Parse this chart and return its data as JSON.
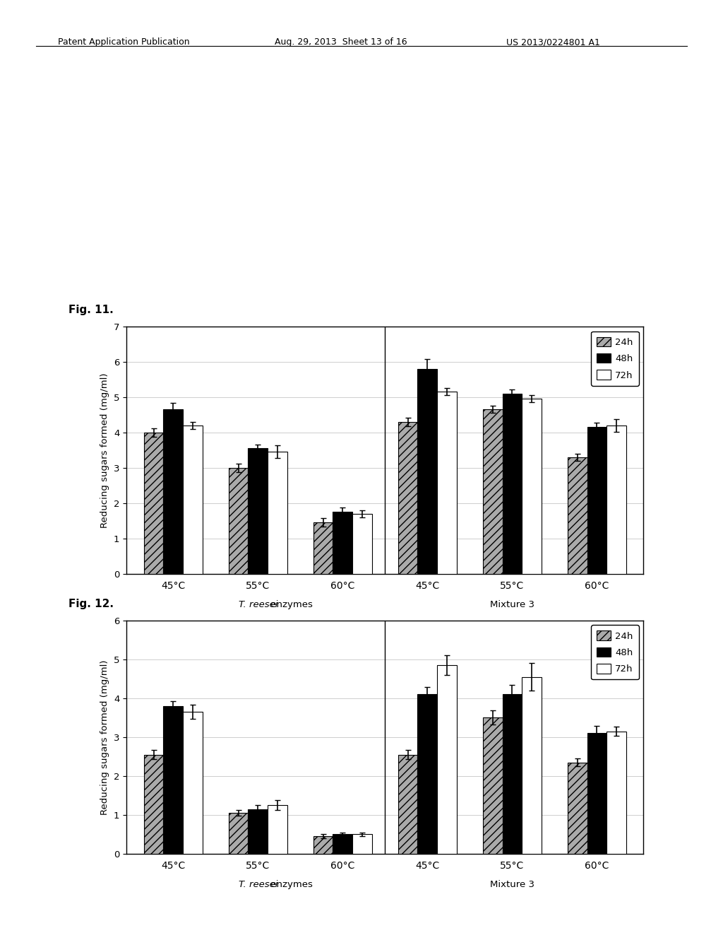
{
  "fig11": {
    "ylabel": "Reducing sugars formed (mg/ml)",
    "ylim": [
      0,
      7
    ],
    "yticks": [
      0,
      1,
      2,
      3,
      4,
      5,
      6,
      7
    ],
    "groups": [
      "45°C",
      "55°C",
      "60°C",
      "45°C",
      "55°C",
      "60°C"
    ],
    "series": [
      "24h",
      "48h",
      "72h"
    ],
    "values": {
      "24h": [
        4.0,
        3.0,
        1.45,
        4.3,
        4.65,
        3.3
      ],
      "48h": [
        4.65,
        3.55,
        1.75,
        5.8,
        5.1,
        4.15
      ],
      "72h": [
        4.2,
        3.45,
        1.7,
        5.15,
        4.95,
        4.2
      ]
    },
    "errors": {
      "24h": [
        0.12,
        0.12,
        0.12,
        0.12,
        0.1,
        0.1
      ],
      "48h": [
        0.18,
        0.1,
        0.12,
        0.28,
        0.12,
        0.12
      ],
      "72h": [
        0.1,
        0.18,
        0.1,
        0.1,
        0.1,
        0.18
      ]
    }
  },
  "fig12": {
    "ylabel": "Reducing sugars formed (mg/ml)",
    "ylim": [
      0,
      6
    ],
    "yticks": [
      0,
      1,
      2,
      3,
      4,
      5,
      6
    ],
    "groups": [
      "45°C",
      "55°C",
      "60°C",
      "45°C",
      "55°C",
      "60°C"
    ],
    "series": [
      "24h",
      "48h",
      "72h"
    ],
    "values": {
      "24h": [
        2.55,
        1.05,
        0.45,
        2.55,
        3.5,
        2.35
      ],
      "48h": [
        3.8,
        1.15,
        0.5,
        4.1,
        4.1,
        3.1
      ],
      "72h": [
        3.65,
        1.25,
        0.5,
        4.85,
        4.55,
        3.15
      ]
    },
    "errors": {
      "24h": [
        0.12,
        0.08,
        0.05,
        0.12,
        0.18,
        0.1
      ],
      "48h": [
        0.12,
        0.1,
        0.05,
        0.18,
        0.25,
        0.18
      ],
      "72h": [
        0.18,
        0.12,
        0.05,
        0.25,
        0.35,
        0.12
      ]
    }
  },
  "fig11_label": "Fig. 11.",
  "fig12_label": "Fig. 12.",
  "header_left": "Patent Application Publication",
  "header_mid": "Aug. 29, 2013  Sheet 13 of 16",
  "header_right": "US 2013/0224801 A1",
  "bar_colors": [
    "#aaaaaa",
    "#000000",
    "#ffffff"
  ],
  "bar_hatches": [
    "///",
    "",
    ""
  ],
  "bar_edgecolor": "#000000",
  "legend_series": [
    "24h",
    "48h",
    "72h"
  ],
  "tresei_label_it": "T. reesei",
  "tresei_label_norm": " enzymes",
  "mix3_label": "Mixture 3",
  "background_color": "#ffffff"
}
